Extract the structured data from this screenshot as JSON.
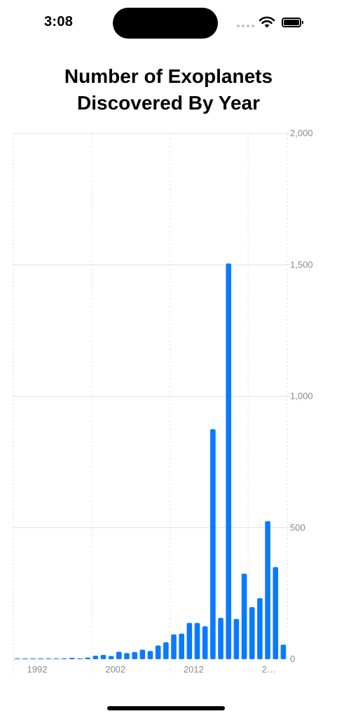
{
  "status_bar": {
    "time": "3:08",
    "icons": [
      "signal-dots-icon",
      "wifi-icon",
      "battery-icon"
    ]
  },
  "title": {
    "line1": "Number of Exoplanets",
    "line2": "Discovered By Year"
  },
  "colors": {
    "bar": "#0a7aff",
    "grid": "#e3e3e6",
    "tick_text": "#8a8a8e"
  },
  "chart_data": {
    "type": "bar",
    "title": "Number of Exoplanets Discovered By Year",
    "xlabel": "",
    "ylabel": "",
    "x_tick_labels": [
      "1992",
      "2002",
      "2012",
      "2…"
    ],
    "y_tick_labels": [
      "2,000",
      "1,500",
      "1,000",
      "500",
      "0"
    ],
    "y_axis_position": "right",
    "ylim": [
      0,
      2000
    ],
    "grid": true,
    "categories": [
      1989,
      1990,
      1991,
      1992,
      1993,
      1994,
      1995,
      1996,
      1997,
      1998,
      1999,
      2000,
      2001,
      2002,
      2003,
      2004,
      2005,
      2006,
      2007,
      2008,
      2009,
      2010,
      2011,
      2012,
      2013,
      2014,
      2015,
      2016,
      2017,
      2018,
      2019,
      2020,
      2021,
      2022,
      2023
    ],
    "values": [
      1,
      0,
      1,
      2,
      1,
      0,
      1,
      5,
      1,
      6,
      13,
      16,
      12,
      28,
      23,
      27,
      36,
      31,
      52,
      64,
      94,
      97,
      138,
      138,
      125,
      875,
      157,
      1505,
      153,
      325,
      198,
      232,
      525,
      350,
      55
    ]
  }
}
